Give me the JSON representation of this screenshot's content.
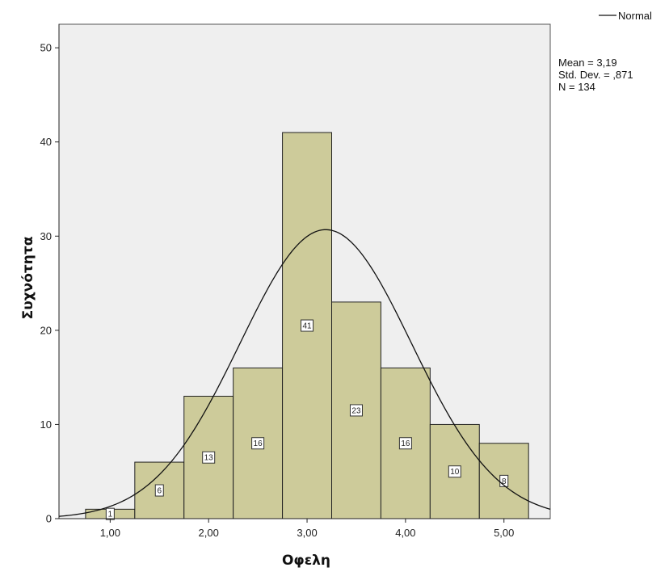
{
  "chart_data": {
    "type": "bar",
    "xlabel": "Οφελη",
    "ylabel": "Συχνότητα",
    "bins": [
      {
        "x0": 0.75,
        "x1": 1.25,
        "count": 1
      },
      {
        "x0": 1.25,
        "x1": 1.75,
        "count": 6
      },
      {
        "x0": 1.75,
        "x1": 2.25,
        "count": 13
      },
      {
        "x0": 2.25,
        "x1": 2.75,
        "count": 16
      },
      {
        "x0": 2.75,
        "x1": 3.25,
        "count": 41
      },
      {
        "x0": 3.25,
        "x1": 3.75,
        "count": 23
      },
      {
        "x0": 3.75,
        "x1": 4.25,
        "count": 16
      },
      {
        "x0": 4.25,
        "x1": 4.75,
        "count": 10
      },
      {
        "x0": 4.75,
        "x1": 5.25,
        "count": 8
      }
    ],
    "x_ticks": [
      {
        "value": 1,
        "label": "1,00"
      },
      {
        "value": 2,
        "label": "2,00"
      },
      {
        "value": 3,
        "label": "3,00"
      },
      {
        "value": 4,
        "label": "4,00"
      },
      {
        "value": 5,
        "label": "5,00"
      }
    ],
    "y_ticks": [
      {
        "value": 0,
        "label": "0"
      },
      {
        "value": 10,
        "label": "10"
      },
      {
        "value": 20,
        "label": "20"
      },
      {
        "value": 30,
        "label": "30"
      },
      {
        "value": 40,
        "label": "40"
      },
      {
        "value": 50,
        "label": "50"
      }
    ],
    "xlim": [
      0.48,
      5.47
    ],
    "ylim": [
      0,
      52.5
    ],
    "normal_curve": {
      "mean": 3.19,
      "sd": 0.871,
      "n": 134,
      "bin_width": 0.5
    },
    "legend": {
      "entries": [
        "Normal"
      ],
      "position": "top-right"
    },
    "stats": {
      "mean": "Mean = 3,19",
      "sd": "Std. Dev. = ,871",
      "n": "N = 134"
    },
    "colors": {
      "bar_fill": "#cdcb9a",
      "bar_stroke": "#222222",
      "plot_bg": "#efefef",
      "curve": "#111111"
    },
    "grid": false
  }
}
